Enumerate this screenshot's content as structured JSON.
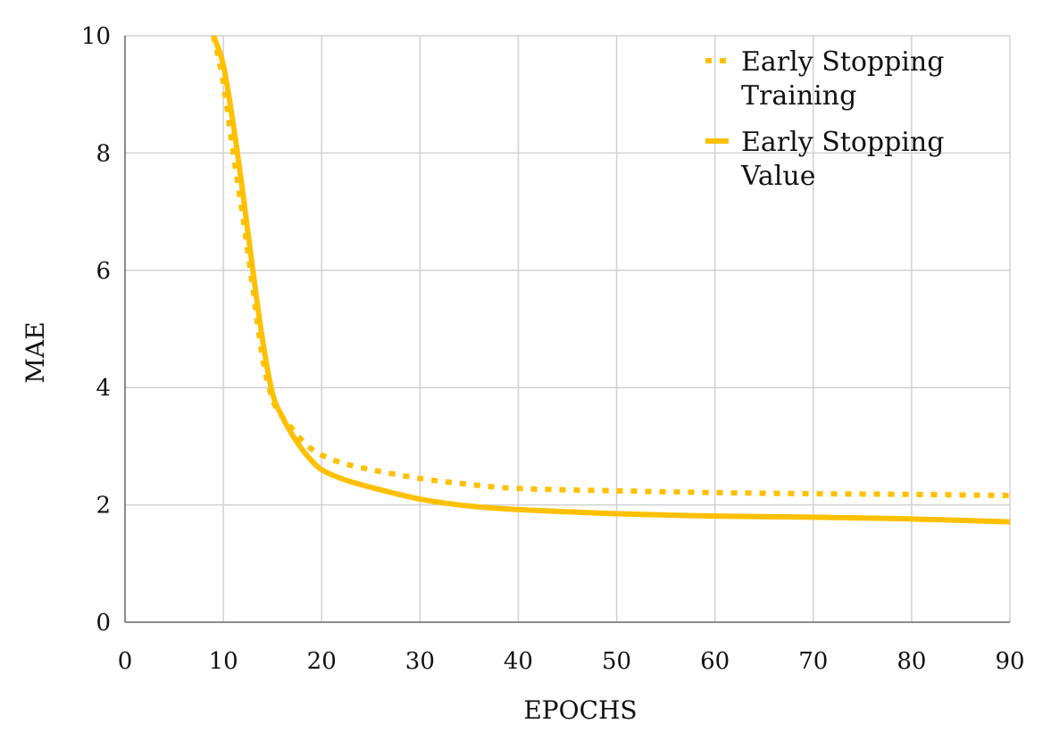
{
  "chart_data": {
    "type": "line",
    "title": "",
    "xlabel": "EPOCHS",
    "ylabel": "MAE",
    "xlim": [
      0,
      90
    ],
    "ylim": [
      0,
      10
    ],
    "x_ticks": [
      0,
      10,
      20,
      30,
      40,
      50,
      60,
      70,
      80,
      90
    ],
    "y_ticks": [
      0,
      2,
      4,
      6,
      8,
      10
    ],
    "x_tick_labels": [
      "0",
      "10",
      "20",
      "30",
      "40",
      "50",
      "60",
      "70",
      "80",
      "90"
    ],
    "y_tick_labels": [
      "0",
      "2",
      "4",
      "6",
      "8",
      "10"
    ],
    "grid": true,
    "legend_position": "top-right",
    "series": [
      {
        "name": "Early Stopping Training",
        "legend_lines": [
          "Early Stopping",
          "Training"
        ],
        "style": "dotted",
        "color": "#FFC000",
        "x": [
          9,
          10,
          11,
          12,
          13,
          14,
          15,
          16,
          17,
          18,
          19,
          20,
          22,
          25,
          30,
          35,
          40,
          50,
          60,
          70,
          80,
          90
        ],
        "y": [
          10.0,
          9.2,
          8.0,
          6.9,
          5.7,
          4.5,
          3.8,
          3.5,
          3.3,
          3.1,
          2.95,
          2.85,
          2.72,
          2.6,
          2.45,
          2.35,
          2.28,
          2.24,
          2.21,
          2.19,
          2.18,
          2.16
        ]
      },
      {
        "name": "Early Stopping Value",
        "legend_lines": [
          "Early Stopping",
          "Value"
        ],
        "style": "solid",
        "color": "#FFC000",
        "x": [
          9,
          10,
          11,
          12,
          13,
          14,
          15,
          16,
          17,
          18,
          19,
          20,
          22,
          25,
          30,
          35,
          40,
          50,
          60,
          70,
          80,
          90
        ],
        "y": [
          10.0,
          9.5,
          8.5,
          7.3,
          6.0,
          4.8,
          3.9,
          3.5,
          3.2,
          2.95,
          2.75,
          2.6,
          2.45,
          2.3,
          2.1,
          1.98,
          1.92,
          1.85,
          1.81,
          1.79,
          1.76,
          1.71
        ]
      }
    ]
  }
}
